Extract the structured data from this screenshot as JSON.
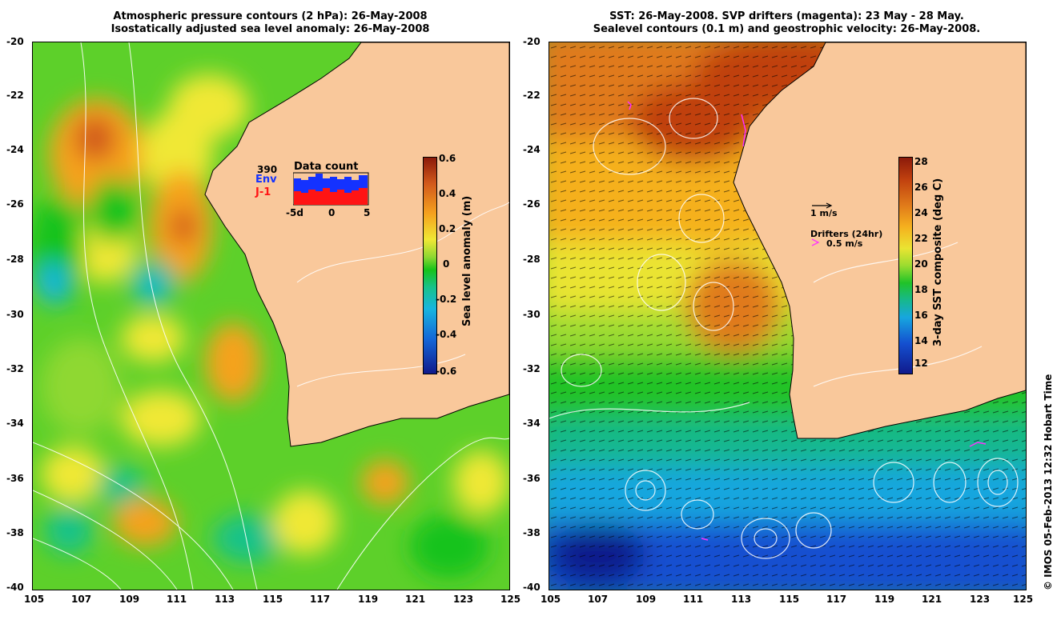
{
  "left_panel": {
    "title_line1": "Atmospheric pressure contours (2 hPa): 26-May-2008",
    "title_line2": "Isostatically adjusted sea level anomaly: 26-May-2008",
    "y_ticks": [
      "-20",
      "-22",
      "-24",
      "-26",
      "-28",
      "-30",
      "-32",
      "-34",
      "-36",
      "-38",
      "-40"
    ],
    "x_ticks": [
      "105",
      "107",
      "109",
      "111",
      "113",
      "115",
      "117",
      "119",
      "121",
      "123",
      "125"
    ],
    "colorbar": {
      "label": "Sea level anomaly (m)",
      "ticks": [
        "0.6",
        "0.4",
        "0.2",
        "0",
        "-0.2",
        "-0.4",
        "-0.6"
      ],
      "colors": [
        "#8b1a0a",
        "#d2591b",
        "#f5a21e",
        "#f0e834",
        "#8fd832",
        "#16c31a",
        "#17c28a",
        "#17b5df",
        "#1467d8",
        "#101a8c"
      ]
    },
    "inset": {
      "title": "Data count",
      "count": "390",
      "env_label": "Env",
      "j1_label": "J-1",
      "x_tick_labels": [
        "-5d",
        "0",
        "5"
      ],
      "env_color": "#1432ff",
      "j1_color": "#ff1414"
    }
  },
  "right_panel": {
    "title_line1": "SST: 26-May-2008. SVP drifters (magenta): 23 May - 28 May.",
    "title_line2": "Sealevel contours (0.1 m) and geostrophic velocity: 26-May-2008.",
    "y_ticks": [
      "-20",
      "-22",
      "-24",
      "-26",
      "-28",
      "-30",
      "-32",
      "-34",
      "-36",
      "-38",
      "-40"
    ],
    "x_ticks": [
      "105",
      "107",
      "109",
      "111",
      "113",
      "115",
      "117",
      "119",
      "121",
      "123",
      "125"
    ],
    "colorbar": {
      "label": "3-day SST composite (deg C)",
      "ticks": [
        "28",
        "26",
        "24",
        "22",
        "20",
        "18",
        "16",
        "14",
        "12"
      ],
      "colors": [
        "#8b1a0a",
        "#c0400f",
        "#e07a1a",
        "#f5b01e",
        "#eae432",
        "#9bdc30",
        "#20c328",
        "#17b88c",
        "#17a6df",
        "#1450d0",
        "#101a8c"
      ]
    },
    "velocity_scale_label": "1 m/s",
    "drifters_label": "Drifters (24hr)",
    "drifter_speed_label": "0.5 m/s",
    "drifter_color": "#ff30ff"
  },
  "colors": {
    "land": "#f9c89b",
    "contour": "#ffffff"
  },
  "credit": "© IMOS 05-Feb-2013 12:32 Hobart Time"
}
